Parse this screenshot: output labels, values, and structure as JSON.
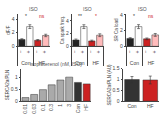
{
  "chart_data": [
    {
      "type": "bar",
      "title": "ISO",
      "y_label": "dF/F",
      "categories": [
        "−",
        "+",
        "−",
        "+"
      ],
      "groups": [
        "Con",
        "Con",
        "HF",
        "HF"
      ],
      "values": [
        1.0,
        2.9,
        0.9,
        1.6
      ],
      "errors": [
        0.12,
        0.28,
        0.1,
        0.18
      ],
      "colors": [
        "#222222",
        "#ffffff",
        "#cc2222",
        "#ffbbbb"
      ],
      "annotations": [
        {
          "text": "*",
          "group": "Con",
          "color": "#333333"
        },
        {
          "text": "ns",
          "group": "HF",
          "color": "#cc2222"
        }
      ],
      "ylim": [
        0,
        4.785
      ],
      "yticks": [
        0,
        2,
        4
      ],
      "grid": false
    },
    {
      "type": "bar",
      "title": "ISO",
      "y_label": "Ca spark freq.",
      "categories": [
        "−",
        "+",
        "−",
        "+"
      ],
      "groups": [
        "Con",
        "Con",
        "HF",
        "HF"
      ],
      "values": [
        1.0,
        3.1,
        0.85,
        1.75
      ],
      "errors": [
        0.15,
        0.3,
        0.12,
        0.22
      ],
      "colors": [
        "#222222",
        "#ffffff",
        "#cc2222",
        "#ffbbbb"
      ],
      "annotations": [
        {
          "text": "**",
          "group": "Con",
          "color": "#333333"
        },
        {
          "text": "*",
          "group": "HF",
          "color": "#cc2222"
        }
      ],
      "ylim": [
        0,
        5.115
      ],
      "yticks": [
        0,
        2,
        4
      ],
      "grid": false
    },
    {
      "type": "bar",
      "title": "ISO",
      "y_label": "SR Ca load",
      "categories": [
        "−",
        "+",
        "−",
        "+"
      ],
      "groups": [
        "Con",
        "Con",
        "HF",
        "HF"
      ],
      "values": [
        1.0,
        2.5,
        0.95,
        1.45
      ],
      "errors": [
        0.1,
        0.25,
        0.11,
        0.18
      ],
      "colors": [
        "#222222",
        "#ffffff",
        "#cc2222",
        "#ffbbbb"
      ],
      "annotations": [
        {
          "text": "*",
          "group": "Con",
          "color": "#333333"
        },
        {
          "text": "ns",
          "group": "HF",
          "color": "#cc2222"
        }
      ],
      "ylim": [
        0,
        4.125
      ],
      "yticks": [
        0,
        2,
        4
      ],
      "grid": false
    },
    {
      "type": "bar",
      "title": "isoproterenol (nM, ISO)",
      "y_label": "SERCA2a/PLN",
      "categories": [
        "0.01",
        "0.03",
        "0.1",
        "0.3",
        "1",
        "3",
        "Con",
        "HF"
      ],
      "values": [
        0.15,
        0.28,
        0.48,
        0.68,
        0.88,
        1.0,
        0.78,
        0.72
      ],
      "colors": [
        "#aaaaaa",
        "#aaaaaa",
        "#aaaaaa",
        "#aaaaaa",
        "#aaaaaa",
        "#aaaaaa",
        "#333333",
        "#cc2222"
      ],
      "ylim": [
        0,
        1.35
      ],
      "yticks": [
        0,
        0.5,
        1
      ],
      "grid": false
    },
    {
      "type": "bar",
      "y_label": "SERCA2a/PLN (AU)",
      "categories": [
        "Con",
        "HF"
      ],
      "values": [
        1.0,
        0.98
      ],
      "errors": [
        0.14,
        0.18
      ],
      "colors": [
        "#333333",
        "#cc2222"
      ],
      "ylim": [
        0,
        1.5
      ],
      "yticks": [
        0,
        0.5,
        1,
        1.5
      ],
      "grid": false
    }
  ]
}
